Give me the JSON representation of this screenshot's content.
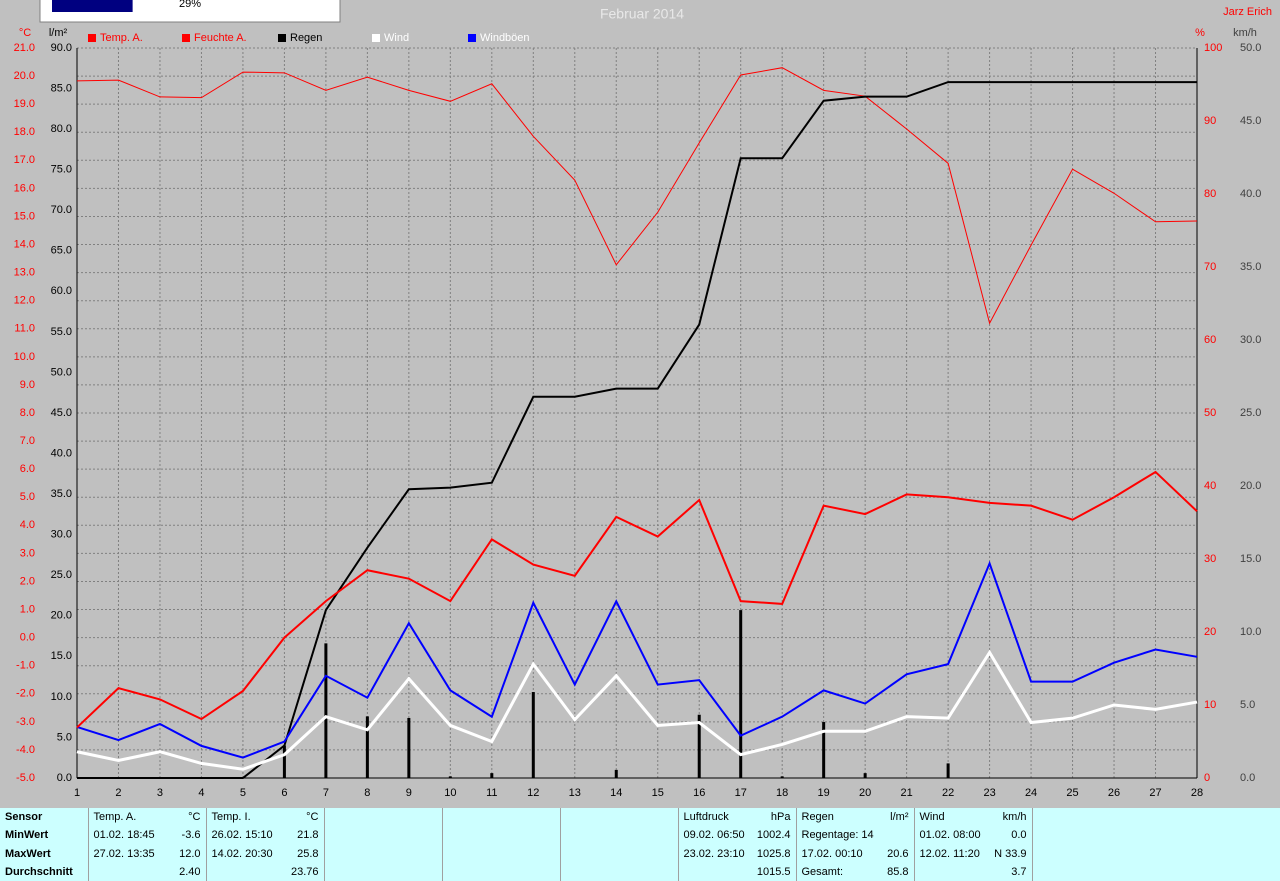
{
  "chart_data": {
    "type": "line",
    "title": "Februar 2014",
    "author": "Jarz Erich",
    "categories": [
      "1",
      "2",
      "3",
      "4",
      "5",
      "6",
      "7",
      "8",
      "9",
      "10",
      "11",
      "12",
      "13",
      "14",
      "15",
      "16",
      "17",
      "18",
      "19",
      "20",
      "21",
      "22",
      "23",
      "24",
      "25",
      "26",
      "27",
      "28"
    ],
    "grid": true,
    "grid_axis": 0,
    "axes": [
      {
        "unit": "°C",
        "color": "#ff0000",
        "lim": [
          -5,
          21
        ],
        "ticks": [
          {
            "value": -5,
            "label": "-5.0"
          },
          {
            "value": -4,
            "label": "-4.0"
          },
          {
            "value": -3,
            "label": "-3.0"
          },
          {
            "value": -2,
            "label": "-2.0"
          },
          {
            "value": -1,
            "label": "-1.0"
          },
          {
            "value": 0,
            "label": "0.0"
          },
          {
            "value": 1,
            "label": "1.0"
          },
          {
            "value": 2,
            "label": "2.0"
          },
          {
            "value": 3,
            "label": "3.0"
          },
          {
            "value": 4,
            "label": "4.0"
          },
          {
            "value": 5,
            "label": "5.0"
          },
          {
            "value": 6,
            "label": "6.0"
          },
          {
            "value": 7,
            "label": "7.0"
          },
          {
            "value": 8,
            "label": "8.0"
          },
          {
            "value": 9,
            "label": "9.0"
          },
          {
            "value": 10,
            "label": "10.0"
          },
          {
            "value": 11,
            "label": "11.0"
          },
          {
            "value": 12,
            "label": "12.0"
          },
          {
            "value": 13,
            "label": "13.0"
          },
          {
            "value": 14,
            "label": "14.0"
          },
          {
            "value": 15,
            "label": "15.0"
          },
          {
            "value": 16,
            "label": "16.0"
          },
          {
            "value": 17,
            "label": "17.0"
          },
          {
            "value": 18,
            "label": "18.0"
          },
          {
            "value": 19,
            "label": "19.0"
          },
          {
            "value": 20,
            "label": "20.0"
          },
          {
            "value": 21,
            "label": "21.0"
          }
        ]
      },
      {
        "unit": "l/m²",
        "color": "#000000",
        "lim": [
          0,
          90
        ],
        "ticks": [
          {
            "value": 0,
            "label": "0.0"
          },
          {
            "value": 5,
            "label": "5.0"
          },
          {
            "value": 10,
            "label": "10.0"
          },
          {
            "value": 15,
            "label": "15.0"
          },
          {
            "value": 20,
            "label": "20.0"
          },
          {
            "value": 25,
            "label": "25.0"
          },
          {
            "value": 30,
            "label": "30.0"
          },
          {
            "value": 35,
            "label": "35.0"
          },
          {
            "value": 40,
            "label": "40.0"
          },
          {
            "value": 45,
            "label": "45.0"
          },
          {
            "value": 50,
            "label": "50.0"
          },
          {
            "value": 55,
            "label": "55.0"
          },
          {
            "value": 60,
            "label": "60.0"
          },
          {
            "value": 65,
            "label": "65.0"
          },
          {
            "value": 70,
            "label": "70.0"
          },
          {
            "value": 75,
            "label": "75.0"
          },
          {
            "value": 80,
            "label": "80.0"
          },
          {
            "value": 85,
            "label": "85.0"
          },
          {
            "value": 90,
            "label": "90.0"
          }
        ]
      },
      {
        "unit": "%",
        "color": "#ff0000",
        "lim": [
          0,
          100
        ],
        "ticks": [
          0,
          10,
          20,
          30,
          40,
          50,
          60,
          70,
          80,
          90,
          100
        ]
      },
      {
        "unit": "km/h",
        "color": "#404040",
        "lim": [
          0,
          50
        ],
        "ticks": [
          {
            "value": 0,
            "label": "0.0"
          },
          {
            "value": 5,
            "label": "5.0"
          },
          {
            "value": 10,
            "label": "10.0"
          },
          {
            "value": 15,
            "label": "15.0"
          },
          {
            "value": 20,
            "label": "20.0"
          },
          {
            "value": 25,
            "label": "25.0"
          },
          {
            "value": 30,
            "label": "30.0"
          },
          {
            "value": 35,
            "label": "35.0"
          },
          {
            "value": 40,
            "label": "40.0"
          },
          {
            "value": 45,
            "label": "45.0"
          },
          {
            "value": 50,
            "label": "50.0"
          }
        ]
      }
    ],
    "rain_daily": {
      "color": "#000000",
      "axis": 1,
      "values": [
        0,
        0,
        0,
        0,
        0,
        4.0,
        16.6,
        7.6,
        7.4,
        0.2,
        0.6,
        10.6,
        0,
        1.0,
        0,
        7.8,
        20.7,
        0.2,
        6.9,
        0.6,
        0,
        1.8,
        0,
        0,
        0,
        0,
        0,
        0
      ]
    },
    "series": [
      {
        "name": "Temp. A.",
        "color": "#ff0000",
        "label_color": "#ff0000",
        "axis": 0,
        "width": 2,
        "values": [
          -3.2,
          -1.8,
          -2.2,
          -2.9,
          -1.9,
          0.0,
          1.3,
          2.4,
          2.1,
          1.3,
          3.5,
          2.6,
          2.2,
          4.3,
          3.6,
          4.9,
          1.3,
          1.2,
          4.7,
          4.4,
          5.1,
          5.0,
          4.8,
          4.7,
          4.2,
          5.0,
          5.9,
          4.5
        ]
      },
      {
        "name": "Feuchte A.",
        "color": "#ff0000",
        "label_color": "#ff0000",
        "axis": 2,
        "width": 1,
        "values": [
          95.5,
          95.6,
          93.3,
          93.2,
          96.7,
          96.6,
          94.2,
          96.0,
          94.2,
          92.7,
          95.1,
          87.9,
          81.9,
          70.3,
          77.5,
          87.0,
          96.3,
          97.3,
          94.2,
          93.4,
          88.9,
          84.2,
          62.3,
          73.0,
          83.4,
          80.1,
          76.2,
          76.3
        ]
      },
      {
        "name": "Regen",
        "color": "#000000",
        "label_color": "#000000",
        "axis": 1,
        "width": 2,
        "values": [
          0,
          0,
          0,
          0,
          0,
          4.0,
          20.7,
          28.4,
          35.6,
          35.8,
          36.4,
          47.0,
          47.0,
          48.0,
          48.0,
          55.9,
          76.4,
          76.4,
          83.5,
          84.0,
          84.0,
          85.8,
          85.8,
          85.8,
          85.8,
          85.8,
          85.8,
          85.8
        ]
      },
      {
        "name": "Wind",
        "color": "#ffffff",
        "label_color": "#ffffff",
        "axis": 3,
        "width": 3,
        "values": [
          1.8,
          1.2,
          1.8,
          1.0,
          0.6,
          1.6,
          4.2,
          3.3,
          6.8,
          3.6,
          2.5,
          7.8,
          4.0,
          7.0,
          3.6,
          3.8,
          1.6,
          2.3,
          3.2,
          3.2,
          4.2,
          4.1,
          8.6,
          3.8,
          4.1,
          5.0,
          4.7,
          5.2
        ]
      },
      {
        "name": "Windböen",
        "color": "#0000ff",
        "label_color": "#ffffff",
        "axis": 3,
        "width": 2,
        "values": [
          3.5,
          2.6,
          3.7,
          2.2,
          1.4,
          2.5,
          7.0,
          5.5,
          10.6,
          6.0,
          4.2,
          12.0,
          6.4,
          12.1,
          6.4,
          6.7,
          2.9,
          4.2,
          6.0,
          5.1,
          7.1,
          7.8,
          14.7,
          6.6,
          6.6,
          7.9,
          8.8,
          8.3
        ]
      }
    ]
  },
  "progress": {
    "value": 29,
    "label": "29%"
  },
  "stats": {
    "header": "Sensor",
    "row_labels": [
      "MinWert",
      "MaxWert",
      "Durchschnitt"
    ],
    "columns": [
      {
        "title": "Temp. A.",
        "unit": "°C",
        "cells": [
          {
            "left": "01.02.  18:45",
            "right": "-3.6"
          },
          {
            "left": "27.02.  13:35",
            "right": "12.0"
          },
          {
            "right": "2.40"
          }
        ]
      },
      {
        "title": "Temp. I.",
        "unit": "°C",
        "cells": [
          {
            "left": "26.02.  15:10",
            "right": "21.8"
          },
          {
            "left": "14.02.  20:30",
            "right": "25.8"
          },
          {
            "right": "23.76"
          }
        ]
      },
      {
        "title": "Luftdruck",
        "unit": "hPa",
        "cells": [
          {
            "left": "09.02.  06:50",
            "right": "1002.4"
          },
          {
            "left": "23.02.  23:10",
            "right": "1025.8"
          },
          {
            "right": "1015.5"
          }
        ]
      },
      {
        "title": "Regen",
        "unit": "l/m²",
        "cells": [
          {
            "left": "Regentage: 14"
          },
          {
            "left": "17.02.  00:10",
            "right": "20.6"
          },
          {
            "left": "Gesamt:",
            "right": "85.8"
          }
        ]
      },
      {
        "title": "Wind",
        "unit": "km/h",
        "cells": [
          {
            "left": "01.02.  08:00",
            "right": "0.0"
          },
          {
            "left": "12.02.  11:20",
            "right": "N 33.9"
          },
          {
            "right": "3.7"
          }
        ]
      }
    ]
  }
}
